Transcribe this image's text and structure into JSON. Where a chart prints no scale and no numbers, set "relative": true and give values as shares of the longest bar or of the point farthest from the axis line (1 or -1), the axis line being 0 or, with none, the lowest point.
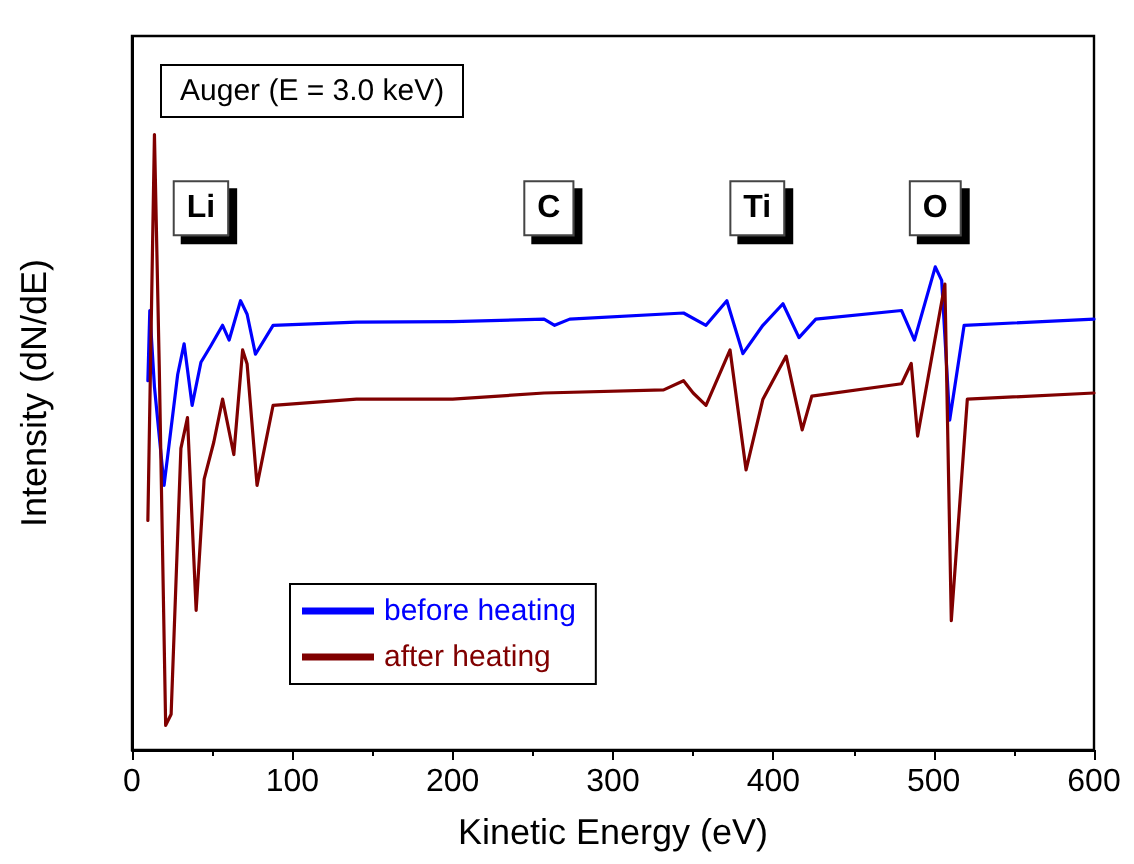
{
  "chart_data": {
    "type": "line",
    "title": "Auger (E = 3.0 keV)",
    "xlabel": "Kinetic Energy (eV)",
    "ylabel": "Intensity (dN/dE)",
    "relative": true,
    "xlim": [
      0,
      600
    ],
    "xticks": [
      0,
      100,
      200,
      300,
      400,
      500,
      600
    ],
    "legend": "bottom left",
    "grid": false,
    "marker": "none",
    "line_style": "solid",
    "annotations": [
      {
        "text": "Li",
        "x": 43,
        "y": 0.88
      },
      {
        "text": "C",
        "x": 260,
        "y": 0.88
      },
      {
        "text": "Ti",
        "x": 390,
        "y": 0.88
      },
      {
        "text": "O",
        "x": 501,
        "y": 0.88
      }
    ],
    "series": [
      {
        "name": "before heating",
        "color": "#0000ff",
        "x": [
          9.9,
          11.1,
          14,
          20,
          28.5,
          32.5,
          37.5,
          43,
          49,
          56.5,
          60.6,
          67.7,
          71.8,
          77,
          88,
          140,
          200,
          257,
          263.6,
          273,
          344,
          358,
          371,
          381,
          393.5,
          406,
          416,
          426.5,
          480,
          488,
          501,
          505,
          510,
          519,
          600
        ],
        "values": [
          0.6,
          0.714,
          0.59,
          0.43,
          0.61,
          0.66,
          0.56,
          0.63,
          0.656,
          0.69,
          0.666,
          0.73,
          0.708,
          0.643,
          0.69,
          0.695,
          0.696,
          0.7,
          0.69,
          0.7,
          0.71,
          0.69,
          0.73,
          0.644,
          0.69,
          0.725,
          0.67,
          0.7,
          0.714,
          0.666,
          0.785,
          0.763,
          0.536,
          0.69,
          0.7
        ]
      },
      {
        "name": "after heating",
        "color": "#800000",
        "x": [
          9.9,
          14,
          17,
          21,
          24.4,
          30.5,
          34.6,
          40,
          45,
          51,
          56.5,
          63.5,
          69,
          71.8,
          78,
          88,
          140,
          200,
          257,
          331.6,
          344,
          350,
          358,
          373,
          383,
          393.5,
          408,
          418,
          424,
          480,
          486,
          490,
          507,
          511,
          521,
          600
        ],
        "values": [
          0.373,
          1,
          0.623,
          0.04,
          0.058,
          0.49,
          0.54,
          0.227,
          0.44,
          0.5,
          0.57,
          0.48,
          0.65,
          0.627,
          0.43,
          0.56,
          0.57,
          0.57,
          0.58,
          0.585,
          0.6,
          0.58,
          0.56,
          0.65,
          0.455,
          0.57,
          0.64,
          0.52,
          0.575,
          0.595,
          0.628,
          0.51,
          0.757,
          0.21,
          0.57,
          0.58
        ]
      }
    ]
  }
}
